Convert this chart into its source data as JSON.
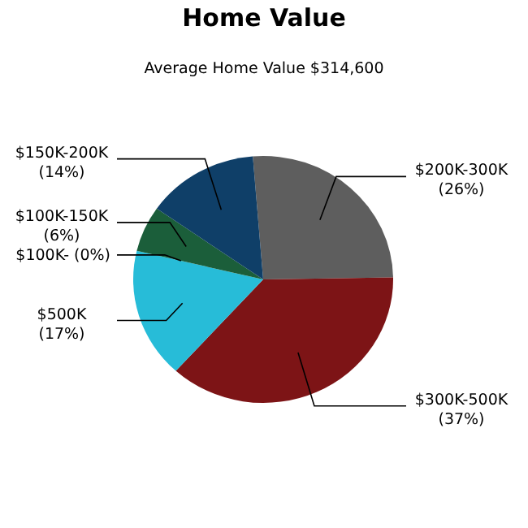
{
  "chart_data": {
    "type": "pie",
    "title": "Home Value",
    "subtitle": "Average Home Value  $314,600",
    "categories": [
      "$200K-300K",
      "$300K-500K",
      "$500K",
      "$100K-",
      "$100K-150K",
      "$150K-200K"
    ],
    "values": [
      26,
      37,
      17,
      0,
      6,
      14
    ],
    "value_labels": [
      "(26%)",
      "(37%)",
      "(17%)",
      "(0%)",
      "(6%)",
      "(14%)"
    ],
    "colors": [
      "#5e5e5e",
      "#7d1416",
      "#27bcd8",
      "#1b5e3a",
      "#1b5e3a",
      "#0f3f68"
    ]
  }
}
